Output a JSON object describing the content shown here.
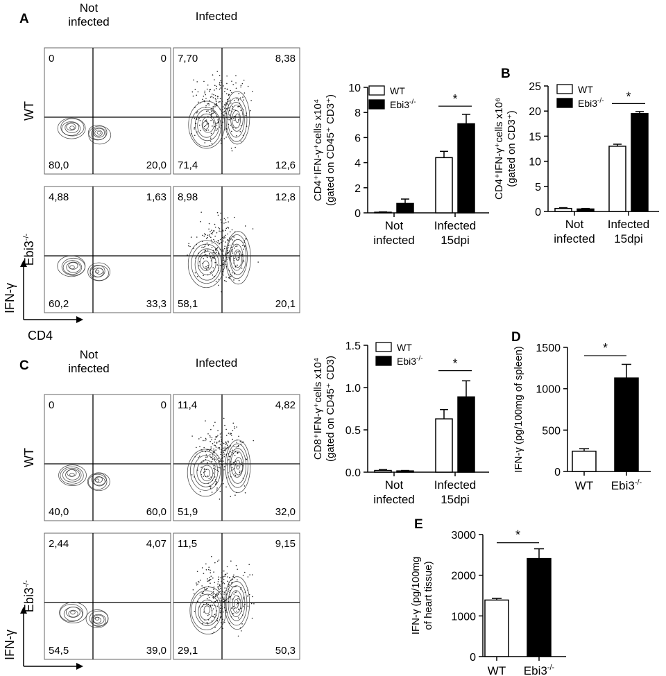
{
  "panels": {
    "a": {
      "letter": "A",
      "col_not_infected": "Not\ninfected",
      "col_infected": "Infected",
      "row_wt": "WT",
      "row_ebi3": "Ebi3",
      "ebi3_sup": "-/-",
      "y_marker": "IFN-γ",
      "x_marker": "CD4",
      "quadrants": [
        [
          "0",
          "0",
          "80,0",
          "20,0"
        ],
        [
          "7,70",
          "8,38",
          "71,4",
          "12,6"
        ],
        [
          "4,88",
          "1,63",
          "60,2",
          "33,3"
        ],
        [
          "8,98",
          "12,8",
          "58,1",
          "20,1"
        ]
      ]
    },
    "b": {
      "letter": "B"
    },
    "c": {
      "letter": "C",
      "col_not_infected": "Not\ninfected",
      "col_infected": "Infected",
      "row_wt": "WT",
      "row_ebi3": "Ebi3",
      "ebi3_sup": "-/-",
      "y_marker": "IFN-γ",
      "x_marker": "CD8",
      "quadrants": [
        [
          "0",
          "0",
          "40,0",
          "60,0"
        ],
        [
          "11,4",
          "4,82",
          "51,9",
          "32,0"
        ],
        [
          "2,44",
          "4,07",
          "54,5",
          "39,0"
        ],
        [
          "11,5",
          "9,15",
          "29,1",
          "50,3"
        ]
      ]
    },
    "d": {
      "letter": "D"
    },
    "e": {
      "letter": "E"
    }
  },
  "chart_data": [
    {
      "id": "A-bar",
      "type": "bar",
      "ylabel_lines": [
        "CD4⁺IFN-γ⁺cells x10⁴",
        "(gated on CD45⁺ CD3⁺)"
      ],
      "ylim": [
        0,
        10
      ],
      "yticks": [
        "0",
        "2",
        "4",
        "6",
        "8",
        "10"
      ],
      "categories": [
        "Not\ninfected",
        "Infected\n15dpi"
      ],
      "series": [
        {
          "name": "WT",
          "values": [
            0.05,
            4.4
          ],
          "errors": [
            0.03,
            0.5
          ]
        },
        {
          "name": "Ebi3-/-",
          "values": [
            0.75,
            7.1
          ],
          "errors": [
            0.35,
            0.75
          ]
        }
      ],
      "significance": "*",
      "legend": "top-left"
    },
    {
      "id": "B-bar",
      "type": "bar",
      "ylabel_lines": [
        "CD4⁺IFN-γ⁺cells x10⁶",
        "(gated on CD3⁺)"
      ],
      "ylim": [
        0,
        25
      ],
      "yticks": [
        "0",
        "5",
        "10",
        "15",
        "20",
        "25"
      ],
      "categories": [
        "Not\ninfected",
        "Infected\n15dpi"
      ],
      "series": [
        {
          "name": "WT",
          "values": [
            0.6,
            13.0
          ],
          "errors": [
            0.15,
            0.4
          ]
        },
        {
          "name": "Ebi3-/-",
          "values": [
            0.5,
            19.5
          ],
          "errors": [
            0.1,
            0.4
          ]
        }
      ],
      "significance": "*",
      "legend": "top-left"
    },
    {
      "id": "C-bar",
      "type": "bar",
      "ylabel_lines": [
        "CD8⁺IFN-γ⁺cells x10⁴",
        "(gated on CD45⁺ CD3)"
      ],
      "ylim": [
        0,
        1.5
      ],
      "yticks": [
        "0.0",
        "0.5",
        "1.0",
        "1.5"
      ],
      "categories": [
        "Not\ninfected",
        "Infected\n15dpi"
      ],
      "series": [
        {
          "name": "WT",
          "values": [
            0.02,
            0.63
          ],
          "errors": [
            0.01,
            0.11
          ]
        },
        {
          "name": "Ebi3-/-",
          "values": [
            0.015,
            0.89
          ],
          "errors": [
            0.005,
            0.19
          ]
        }
      ],
      "significance": "*",
      "legend": "top-left"
    },
    {
      "id": "D-bar",
      "type": "bar",
      "ylabel_lines": [
        "IFN-γ (pg/100mg of spleen)"
      ],
      "ylim": [
        0,
        1500
      ],
      "yticks": [
        "0",
        "500",
        "1000",
        "1500"
      ],
      "categories": [
        "WT",
        "Ebi3-/-"
      ],
      "values": [
        245,
        1130
      ],
      "errors": [
        30,
        165
      ],
      "fills": [
        "#ffffff",
        "#000000"
      ],
      "significance": "*"
    },
    {
      "id": "E-bar",
      "type": "bar",
      "ylabel_lines": [
        "IFN-γ (pg/100mg",
        "of heart tissue)"
      ],
      "ylim": [
        0,
        3000
      ],
      "yticks": [
        "0",
        "1000",
        "2000",
        "3000"
      ],
      "categories": [
        "WT",
        "Ebi3-/-"
      ],
      "values": [
        1390,
        2410
      ],
      "errors": [
        40,
        240
      ],
      "fills": [
        "#ffffff",
        "#000000"
      ],
      "significance": "*"
    }
  ]
}
